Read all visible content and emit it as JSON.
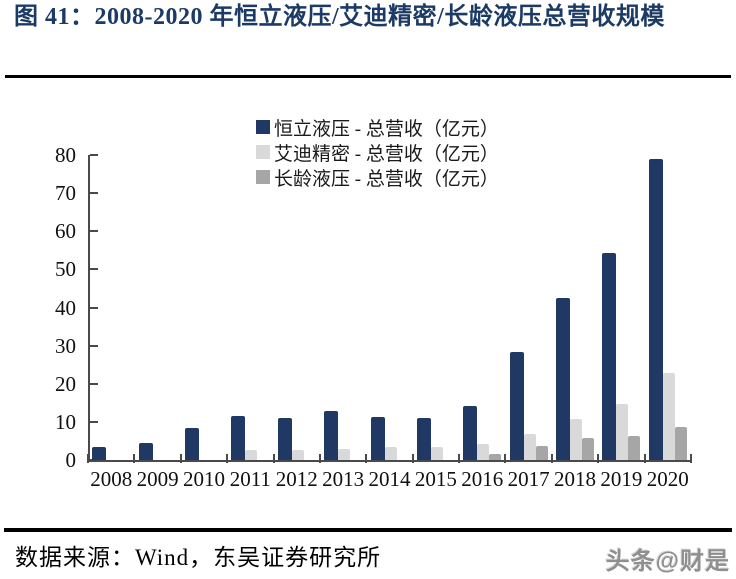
{
  "title": {
    "text": "图 41：2008-2020 年恒立液压/艾迪精密/长龄液压总营收规模"
  },
  "footer": {
    "source_text": "数据来源：Wind，东吴证券研究所"
  },
  "watermark": {
    "text": "头条@财是"
  },
  "colors": {
    "title_navy": "#1B3A66",
    "axis": "#4A4A4A",
    "series_navy": "#1F3864",
    "series_light_gray": "#D9D9D9",
    "series_mid_gray": "#A6A6A6",
    "rule_black": "#000000",
    "watermark_gray": "#8F8F8F"
  },
  "chart_data": {
    "type": "bar",
    "title": "2008-2020 年恒立液压/艾迪精密/长龄液压总营收规模",
    "categories": [
      "2008",
      "2009",
      "2010",
      "2011",
      "2012",
      "2013",
      "2014",
      "2015",
      "2016",
      "2017",
      "2018",
      "2019",
      "2020"
    ],
    "series": [
      {
        "key": "hengli",
        "name": "恒立液压 - 总营收（亿元）",
        "color": "#1F3864",
        "values": [
          3.3,
          4.5,
          8.5,
          11.6,
          10.9,
          12.8,
          11.4,
          11.1,
          14.2,
          28.3,
          42.4,
          54.4,
          78.9
        ]
      },
      {
        "key": "aidi",
        "name": "艾迪精密 - 总营收（亿元）",
        "color": "#D9D9D9",
        "values": [
          0,
          0,
          0,
          2.5,
          2.7,
          3.0,
          3.3,
          3.4,
          4.3,
          6.7,
          10.8,
          14.6,
          22.9
        ]
      },
      {
        "key": "changling",
        "name": "长龄液压 - 总营收（亿元）",
        "color": "#A6A6A6",
        "values": [
          0,
          0,
          0,
          0,
          0,
          0,
          0,
          0,
          1.7,
          3.6,
          5.8,
          6.4,
          8.7
        ]
      }
    ],
    "xlabel": "",
    "ylabel": "",
    "ylim": [
      0,
      80
    ],
    "yticks": [
      0,
      10,
      20,
      30,
      40,
      50,
      60,
      70,
      80
    ],
    "grid": false,
    "legend_position": "top-center"
  }
}
